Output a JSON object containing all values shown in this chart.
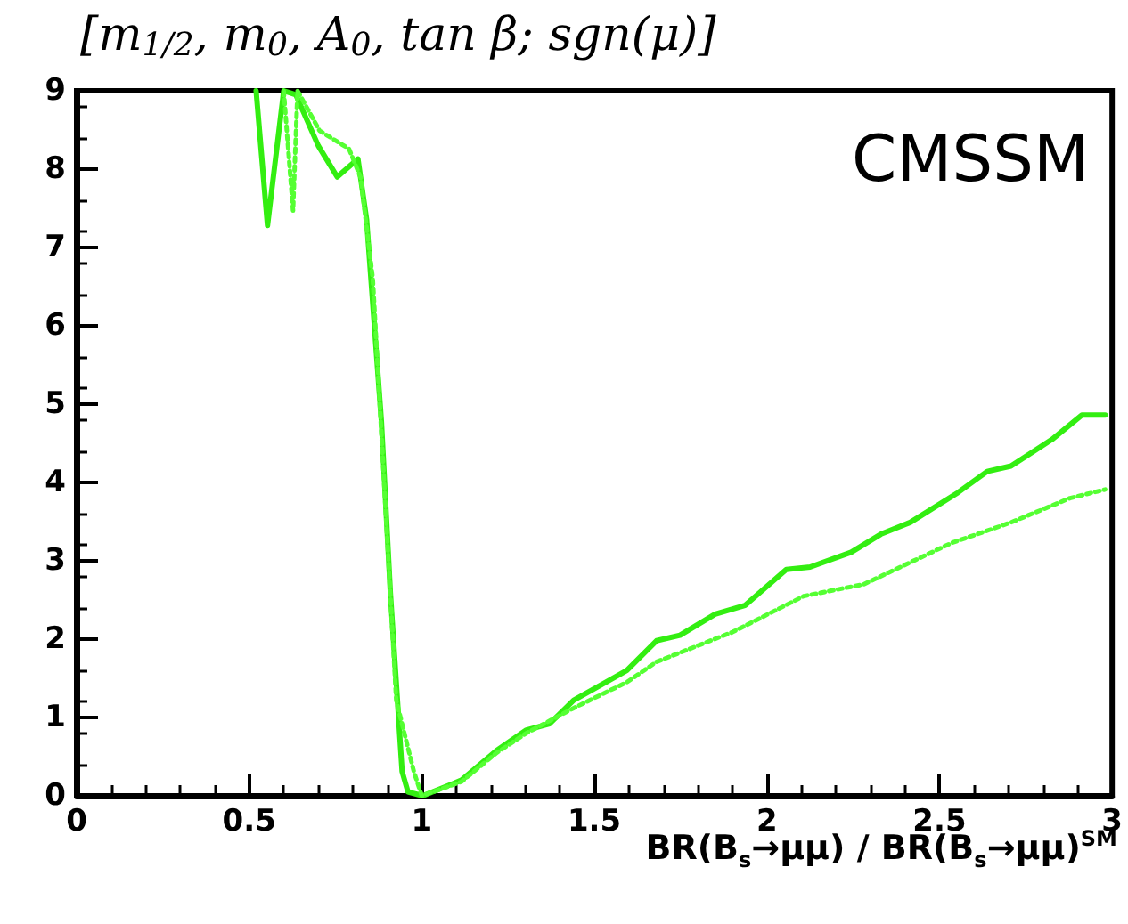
{
  "chart_data": {
    "type": "line",
    "title": "[m$_{1/2}$, m$_{0}$, A$_{0}$, tan β; sgn(μ)]",
    "xlabel": "BR(B$_{s}$→μμ) / BR(B$_{s}$→μμ)$^{SM}$",
    "annotations": [
      "CMSSM"
    ],
    "xlim": [
      0,
      3
    ],
    "ylim": [
      0,
      9
    ],
    "xticks": [
      0,
      0.5,
      1,
      1.5,
      2,
      2.5,
      3
    ],
    "yticks": [
      0,
      1,
      2,
      3,
      4,
      5,
      6,
      7,
      8,
      9
    ],
    "grid": false,
    "marker": "none",
    "series": [
      {
        "color": "#33ee11",
        "line_style": "solid",
        "x": [
          0.52,
          0.553,
          0.6,
          0.635,
          0.7,
          0.755,
          0.815,
          0.84,
          0.883,
          0.909,
          0.943,
          0.96,
          1.003,
          1.115,
          1.217,
          1.303,
          1.37,
          1.44,
          1.594,
          1.68,
          1.748,
          1.85,
          1.936,
          2.056,
          2.125,
          2.244,
          2.33,
          2.415,
          2.553,
          2.638,
          2.707,
          2.826,
          2.912,
          2.98
        ],
        "values": [
          9,
          7.28,
          9,
          8.95,
          8.3,
          7.9,
          8.13,
          7.36,
          4.78,
          2.59,
          0.31,
          0.05,
          0,
          0.2,
          0.58,
          0.84,
          0.92,
          1.22,
          1.6,
          1.98,
          2.05,
          2.32,
          2.43,
          2.89,
          2.92,
          3.11,
          3.34,
          3.49,
          3.87,
          4.14,
          4.21,
          4.55,
          4.86,
          4.86
        ]
      },
      {
        "color": "#55ff33",
        "line_style": "dotted",
        "x": [
          0.6,
          0.627,
          0.64,
          0.704,
          0.789,
          0.823,
          0.858,
          0.926,
          0.977,
          1.0,
          1.115,
          1.217,
          1.303,
          1.44,
          1.594,
          1.68,
          1.9,
          2.107,
          2.28,
          2.536,
          2.707,
          2.878,
          2.98
        ],
        "values": [
          9,
          7.47,
          9,
          8.49,
          8.26,
          7.89,
          6.6,
          1.22,
          0.31,
          0,
          0.18,
          0.55,
          0.8,
          1.12,
          1.45,
          1.71,
          2.09,
          2.55,
          2.7,
          3.23,
          3.49,
          3.8,
          3.91
        ]
      }
    ]
  }
}
